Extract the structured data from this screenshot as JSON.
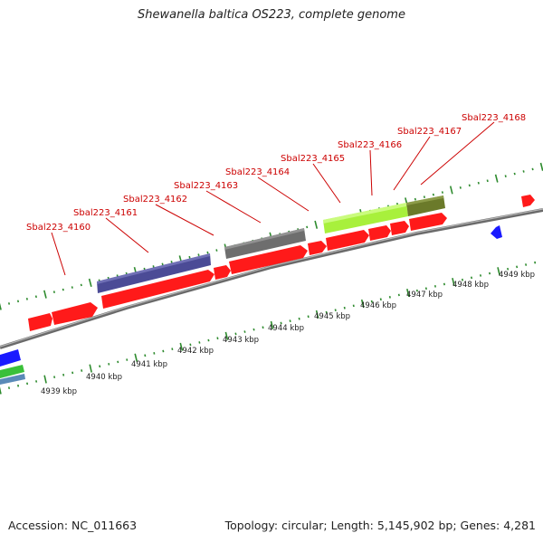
{
  "title": "Shewanella baltica OS223, complete genome",
  "accession": "Accession: NC_011663",
  "summary": "Topology: circular; Length: 5,145,902 bp; Genes: 4,281",
  "colors": {
    "forward_gene": "#ff1a1a",
    "backbone": "#8a8a8a",
    "tick": "#2e8b2e",
    "label": "#cc0000",
    "feature_navy": "#4b4b96",
    "feature_gray": "#6e6e6e",
    "feature_lime": "#a8f03c",
    "feature_olive": "#6b7a2a",
    "reverse_blue": "#1a1aff"
  },
  "gene_labels": [
    "Sbal223_4160",
    "Sbal223_4161",
    "Sbal223_4162",
    "Sbal223_4163",
    "Sbal223_4164",
    "Sbal223_4165",
    "Sbal223_4166",
    "Sbal223_4167",
    "Sbal223_4168"
  ],
  "kbp_labels": [
    "4939 kbp",
    "4940 kbp",
    "4941 kbp",
    "4942 kbp",
    "4943 kbp",
    "4944 kbp",
    "4945 kbp",
    "4946 kbp",
    "4947 kbp",
    "4948 kbp",
    "4949 kbp"
  ]
}
